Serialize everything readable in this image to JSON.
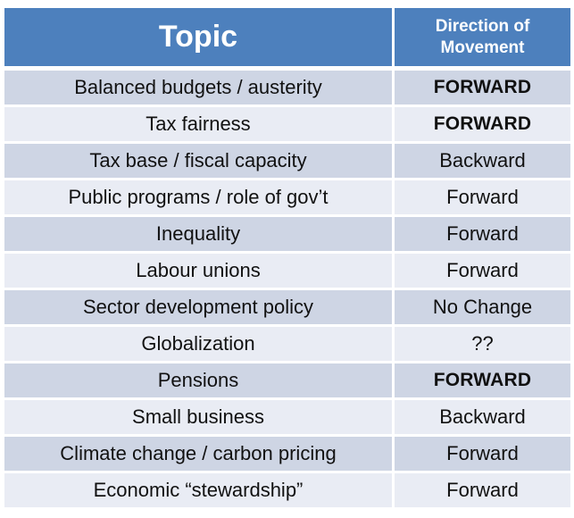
{
  "chart_data": {
    "type": "table",
    "title": "",
    "columns": [
      "Topic",
      "Direction of Movement"
    ],
    "rows": [
      {
        "topic": "Balanced budgets / austerity",
        "direction": "FORWARD",
        "bold": true
      },
      {
        "topic": "Tax fairness",
        "direction": "FORWARD",
        "bold": true
      },
      {
        "topic": "Tax base / fiscal capacity",
        "direction": "Backward",
        "bold": false
      },
      {
        "topic": "Public programs / role of gov’t",
        "direction": "Forward",
        "bold": false
      },
      {
        "topic": "Inequality",
        "direction": "Forward",
        "bold": false
      },
      {
        "topic": "Labour unions",
        "direction": "Forward",
        "bold": false
      },
      {
        "topic": "Sector development policy",
        "direction": "No Change",
        "bold": false
      },
      {
        "topic": "Globalization",
        "direction": "??",
        "bold": false
      },
      {
        "topic": "Pensions",
        "direction": "FORWARD",
        "bold": true
      },
      {
        "topic": "Small business",
        "direction": "Backward",
        "bold": false
      },
      {
        "topic": "Climate change / carbon pricing",
        "direction": "Forward",
        "bold": false
      },
      {
        "topic": "Economic “stewardship”",
        "direction": "Forward",
        "bold": false
      }
    ],
    "layout": {
      "banded_rows": true,
      "header_position": "top",
      "grid": "white-gaps"
    }
  },
  "colors": {
    "header_bg": "#4d80bd",
    "header_text": "#ffffff",
    "band_dark": "#ced5e4",
    "band_light": "#e9ecf4",
    "body_text": "#111111",
    "background": "#ffffff"
  }
}
